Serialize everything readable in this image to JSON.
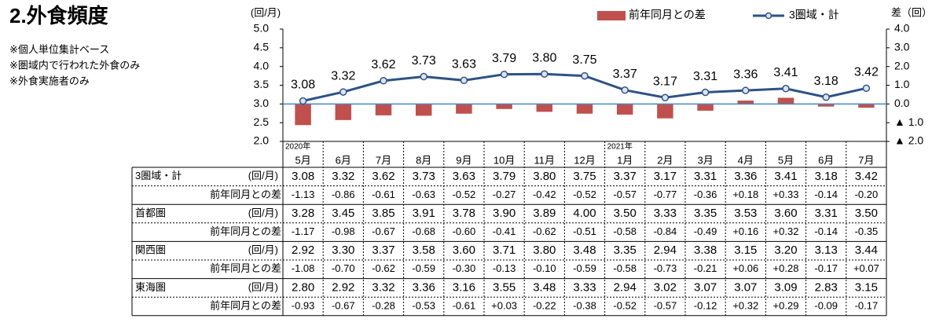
{
  "title": "2.外食頻度",
  "notes": [
    "※個人単位集計ベース",
    "※圏域内で行われた外食のみ",
    "※外食実施者のみ"
  ],
  "chart_data": {
    "type": "bar-line",
    "y_label": "(回/月)",
    "y2_label": "差（回）",
    "categories": [
      "5月",
      "6月",
      "7月",
      "8月",
      "9月",
      "10月",
      "11月",
      "12月",
      "1月",
      "2月",
      "3月",
      "4月",
      "5月",
      "6月",
      "7月"
    ],
    "year_labels": [
      "2020年",
      null,
      null,
      null,
      null,
      null,
      null,
      null,
      "2021年",
      null,
      null,
      null,
      null,
      null,
      null
    ],
    "ylim": [
      2,
      5
    ],
    "yticks": [
      {
        "value": 2,
        "label": "2.0"
      },
      {
        "value": 2.5,
        "label": "2.5"
      },
      {
        "value": 3,
        "label": "3.0"
      },
      {
        "value": 3.5,
        "label": "3.5"
      },
      {
        "value": 4,
        "label": "4.0"
      },
      {
        "value": 4.5,
        "label": "4.5"
      },
      {
        "value": 5,
        "label": "5.0"
      }
    ],
    "y2lim": [
      -2,
      4
    ],
    "y2ticks": [
      {
        "value": -2,
        "label": "▲ 2.0"
      },
      {
        "value": -1,
        "label": "▲ 1.0"
      },
      {
        "value": 0,
        "label": "0.0"
      },
      {
        "value": 1,
        "label": "1.0"
      },
      {
        "value": 2,
        "label": "2.0"
      },
      {
        "value": 3,
        "label": "3.0"
      },
      {
        "value": 4,
        "label": "4.0"
      }
    ],
    "series": [
      {
        "name": "前年同月との差",
        "type": "bar",
        "axis": "y2",
        "color": "#c0504d",
        "values": [
          -1.13,
          -0.86,
          -0.61,
          -0.63,
          -0.52,
          -0.27,
          -0.42,
          -0.52,
          -0.57,
          -0.77,
          -0.36,
          0.18,
          0.33,
          -0.14,
          -0.2
        ]
      },
      {
        "name": "3圏域・計",
        "type": "line",
        "color": "#2e5286",
        "values": [
          3.08,
          3.32,
          3.62,
          3.73,
          3.63,
          3.79,
          3.8,
          3.75,
          3.37,
          3.17,
          3.31,
          3.36,
          3.41,
          3.18,
          3.42
        ],
        "value_labels": [
          "3.08",
          "3.32",
          "3.62",
          "3.73",
          "3.63",
          "3.79",
          "3.80",
          "3.75",
          "3.37",
          "3.17",
          "3.31",
          "3.36",
          "3.41",
          "3.18",
          "3.42"
        ]
      }
    ]
  },
  "table": {
    "groups": [
      {
        "name": "3圏域・計",
        "unit": "(回/月)",
        "values": [
          "3.08",
          "3.32",
          "3.62",
          "3.73",
          "3.63",
          "3.79",
          "3.80",
          "3.75",
          "3.37",
          "3.17",
          "3.31",
          "3.36",
          "3.41",
          "3.18",
          "3.42"
        ],
        "diff_label": "前年同月との差",
        "diffs": [
          "-1.13",
          "-0.86",
          "-0.61",
          "-0.63",
          "-0.52",
          "-0.27",
          "-0.42",
          "-0.52",
          "-0.57",
          "-0.77",
          "-0.36",
          "+0.18",
          "+0.33",
          "-0.14",
          "-0.20"
        ]
      },
      {
        "name": "首都圏",
        "unit": "(回/月)",
        "values": [
          "3.28",
          "3.45",
          "3.85",
          "3.91",
          "3.78",
          "3.90",
          "3.89",
          "4.00",
          "3.50",
          "3.33",
          "3.35",
          "3.53",
          "3.60",
          "3.31",
          "3.50"
        ],
        "diff_label": "前年同月との差",
        "diffs": [
          "-1.17",
          "-0.98",
          "-0.67",
          "-0.68",
          "-0.60",
          "-0.41",
          "-0.62",
          "-0.51",
          "-0.58",
          "-0.84",
          "-0.49",
          "+0.16",
          "+0.32",
          "-0.14",
          "-0.35"
        ]
      },
      {
        "name": "関西圏",
        "unit": "(回/月)",
        "values": [
          "2.92",
          "3.30",
          "3.37",
          "3.58",
          "3.60",
          "3.71",
          "3.80",
          "3.48",
          "3.35",
          "2.94",
          "3.38",
          "3.15",
          "3.20",
          "3.13",
          "3.44"
        ],
        "diff_label": "前年同月との差",
        "diffs": [
          "-1.08",
          "-0.70",
          "-0.62",
          "-0.59",
          "-0.30",
          "-0.13",
          "-0.10",
          "-0.59",
          "-0.58",
          "-0.73",
          "-0.21",
          "+0.06",
          "+0.28",
          "-0.17",
          "+0.07"
        ]
      },
      {
        "name": "東海圏",
        "unit": "(回/月)",
        "values": [
          "2.80",
          "2.92",
          "3.32",
          "3.36",
          "3.16",
          "3.55",
          "3.48",
          "3.33",
          "2.94",
          "3.02",
          "3.07",
          "3.07",
          "3.09",
          "2.83",
          "3.15"
        ],
        "diff_label": "前年同月との差",
        "diffs": [
          "-0.93",
          "-0.67",
          "-0.28",
          "-0.53",
          "-0.61",
          "+0.03",
          "-0.22",
          "-0.38",
          "-0.52",
          "-0.57",
          "-0.12",
          "+0.32",
          "+0.29",
          "-0.09",
          "-0.17"
        ]
      }
    ]
  }
}
